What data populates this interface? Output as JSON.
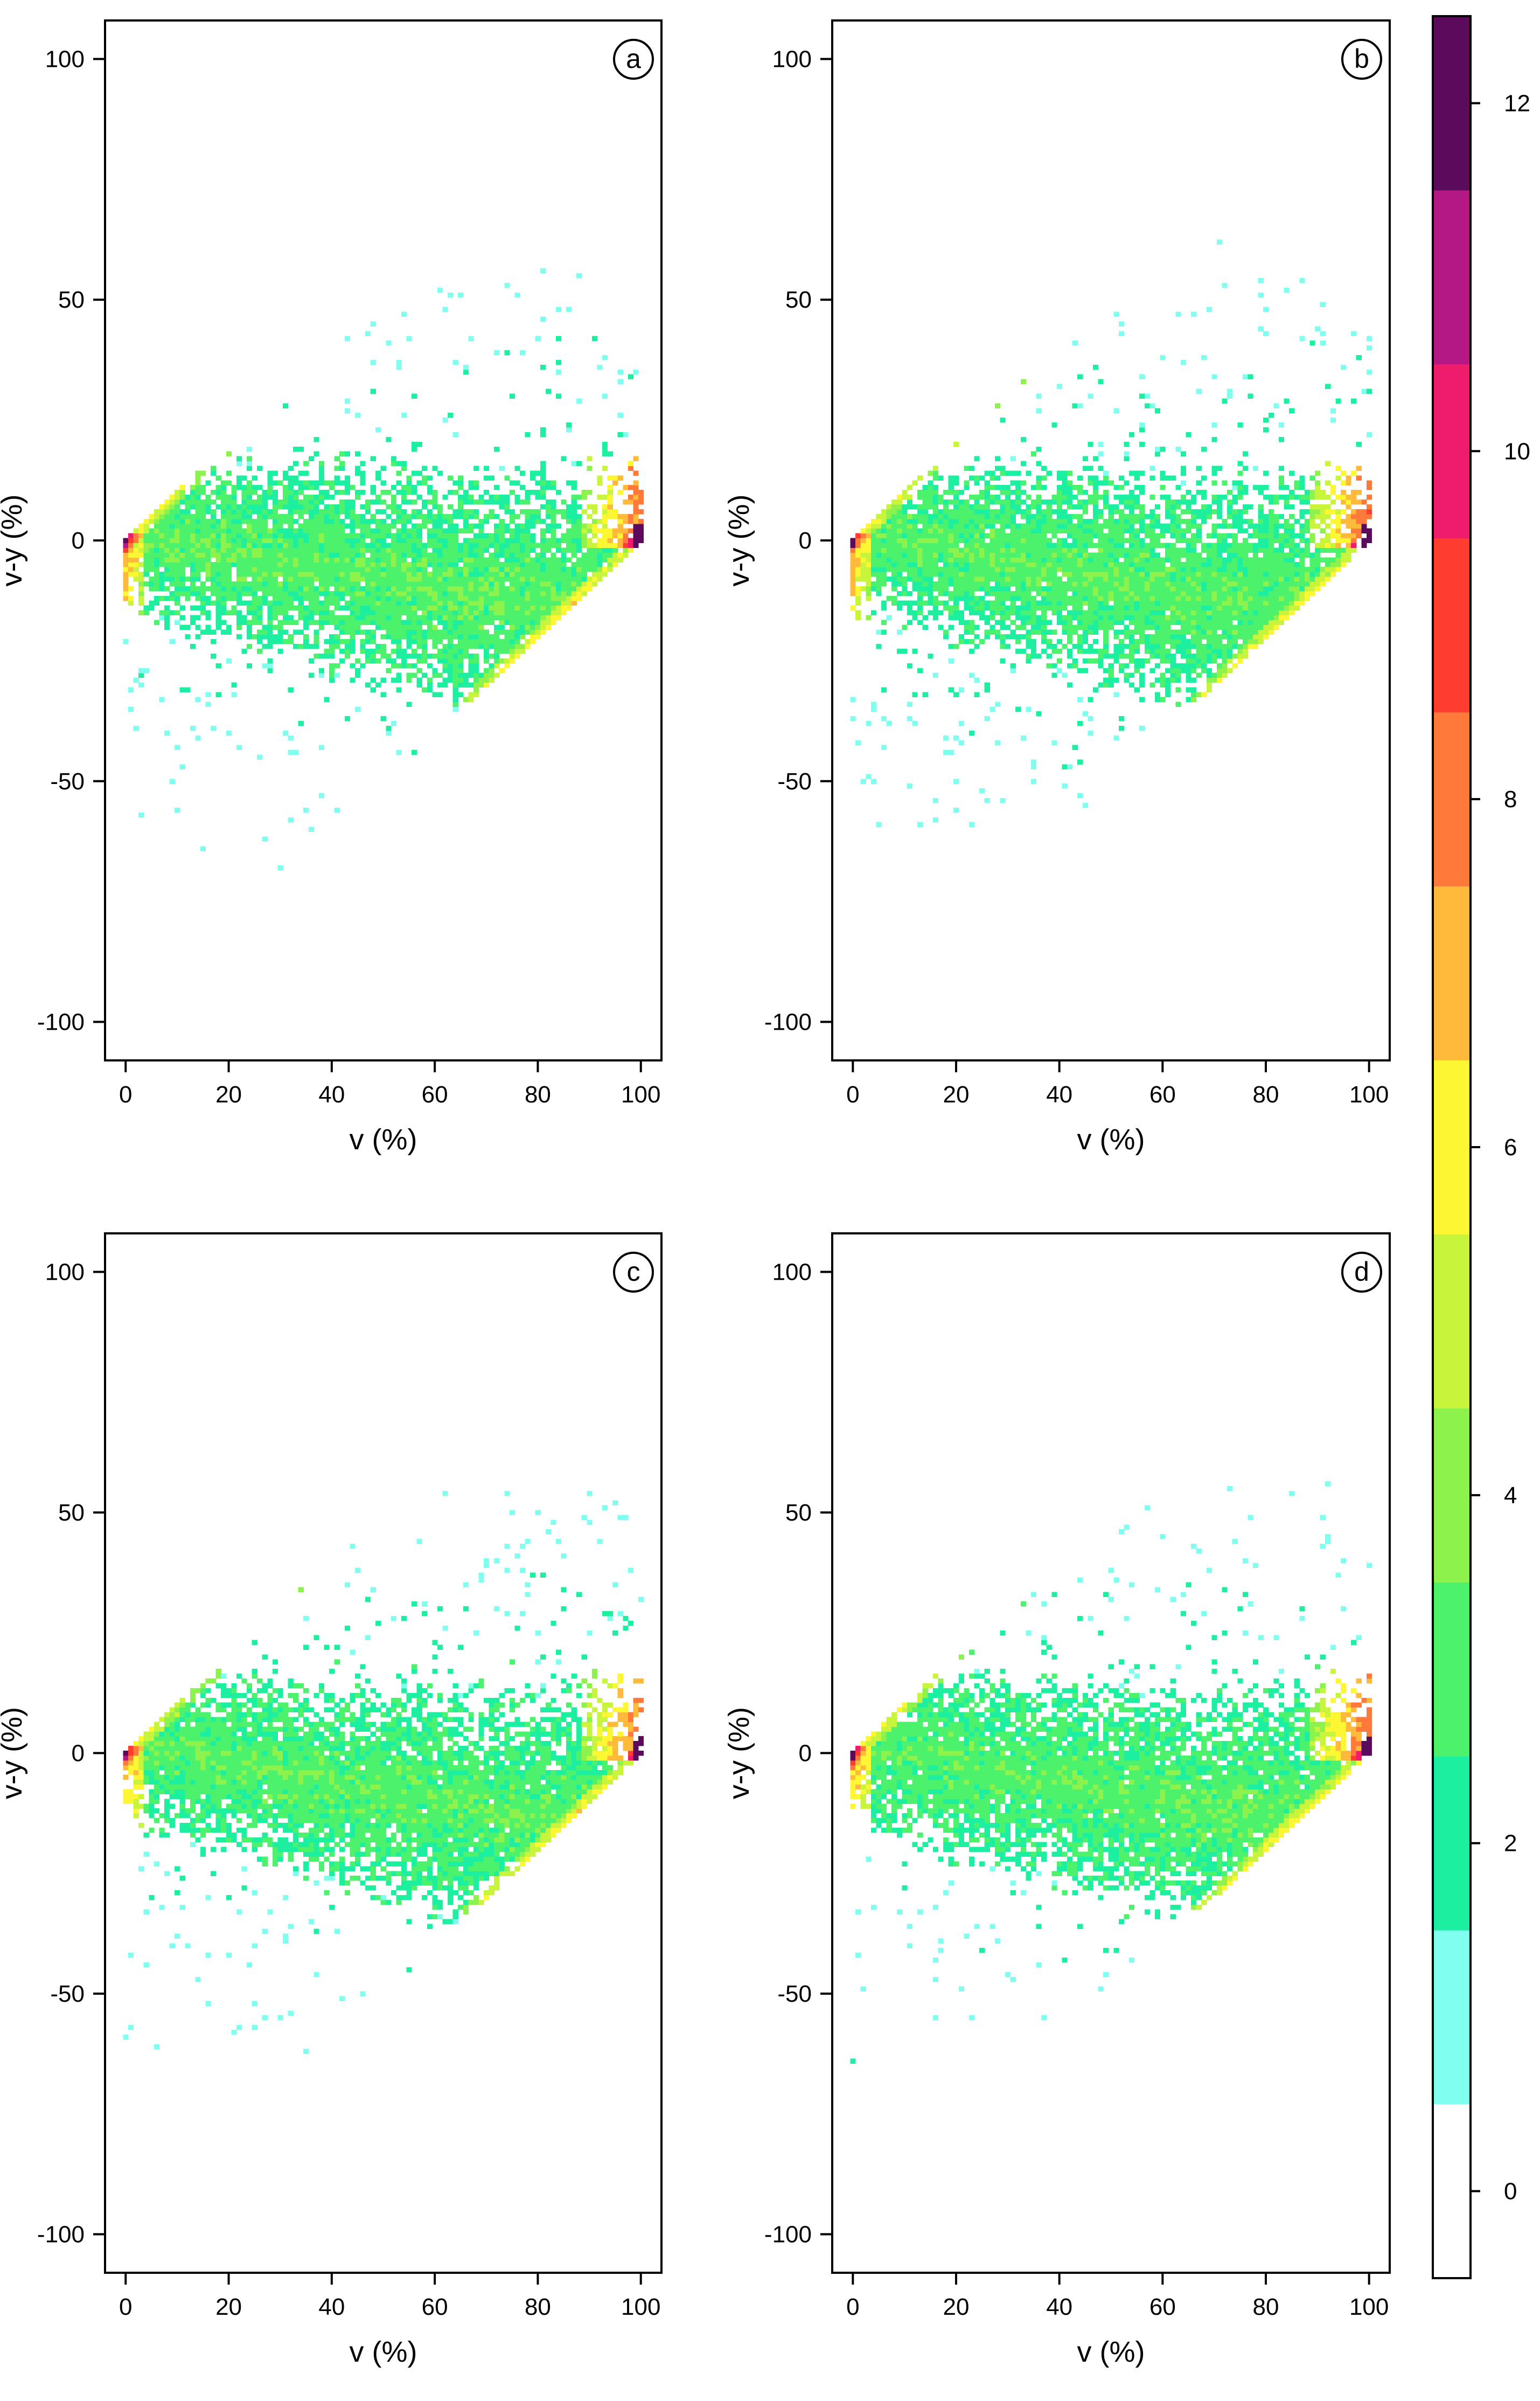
{
  "chart_data": {
    "type": "heatmap",
    "panels": [
      {
        "id": "a",
        "label": "a",
        "xlabel": "v (%)",
        "ylabel": "v-y (%)",
        "xlim": [
          -4,
          104
        ],
        "ylim": [
          -108,
          108
        ],
        "xticks": [
          0,
          20,
          40,
          60,
          80,
          100
        ],
        "yticks": [
          -100,
          -50,
          0,
          50,
          100
        ],
        "max_extent_upper": 70,
        "max_extent_lower": -83,
        "seed": 11
      },
      {
        "id": "b",
        "label": "b",
        "xlabel": "v (%)",
        "ylabel": "v-y (%)",
        "xlim": [
          -4,
          104
        ],
        "ylim": [
          -108,
          108
        ],
        "xticks": [
          0,
          20,
          40,
          60,
          80,
          100
        ],
        "yticks": [
          -100,
          -50,
          0,
          50,
          100
        ],
        "max_extent_upper": 68,
        "max_extent_lower": -61,
        "seed": 23
      },
      {
        "id": "c",
        "label": "c",
        "xlabel": "v (%)",
        "ylabel": "v-y (%)",
        "xlim": [
          -4,
          104
        ],
        "ylim": [
          -108,
          108
        ],
        "xticks": [
          0,
          20,
          40,
          60,
          80,
          100
        ],
        "yticks": [
          -100,
          -50,
          0,
          50,
          100
        ],
        "max_extent_upper": 71,
        "max_extent_lower": -84,
        "seed": 37
      },
      {
        "id": "d",
        "label": "d",
        "xlabel": "v (%)",
        "ylabel": "v-y (%)",
        "xlim": [
          -4,
          104
        ],
        "ylim": [
          -108,
          108
        ],
        "xticks": [
          0,
          20,
          40,
          60,
          80,
          100
        ],
        "yticks": [
          -100,
          -50,
          0,
          50,
          100
        ],
        "max_extent_upper": 67,
        "max_extent_lower": -83,
        "seed": 53
      }
    ],
    "bin_width": 1,
    "description": "2D histogram density of v-y vs v; populated region bounded by v-y <= v and v-y >= v-100",
    "colorbar": {
      "range": [
        -0.5,
        12.5
      ],
      "ticks": [
        0,
        2,
        4,
        6,
        8,
        10,
        12
      ],
      "levels": [
        {
          "from": -0.5,
          "to": 0.5,
          "color": "#ffffff"
        },
        {
          "from": 0.5,
          "to": 1.5,
          "color": "#80ffee"
        },
        {
          "from": 1.5,
          "to": 2.5,
          "color": "#1cf0a0"
        },
        {
          "from": 2.5,
          "to": 3.5,
          "color": "#4cf26c"
        },
        {
          "from": 3.5,
          "to": 4.5,
          "color": "#8ef24c"
        },
        {
          "from": 4.5,
          "to": 5.5,
          "color": "#c8f53c"
        },
        {
          "from": 5.5,
          "to": 6.5,
          "color": "#fdf632"
        },
        {
          "from": 6.5,
          "to": 7.5,
          "color": "#ffba3c"
        },
        {
          "from": 7.5,
          "to": 8.5,
          "color": "#ff7a3a"
        },
        {
          "from": 8.5,
          "to": 9.5,
          "color": "#ff3c30"
        },
        {
          "from": 9.5,
          "to": 10.5,
          "color": "#ee1c6a"
        },
        {
          "from": 10.5,
          "to": 11.5,
          "color": "#b41884"
        },
        {
          "from": 11.5,
          "to": 12.5,
          "color": "#5c0a5c"
        }
      ]
    }
  }
}
